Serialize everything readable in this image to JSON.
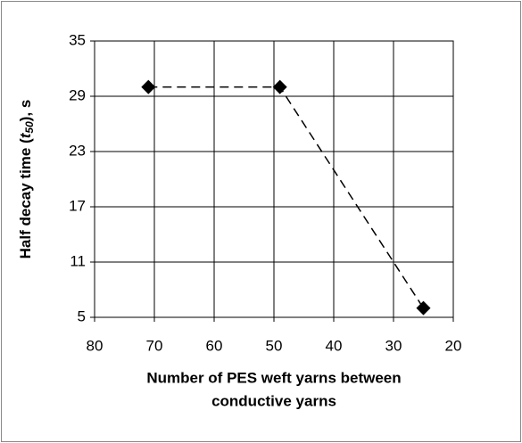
{
  "chart_data": {
    "type": "line",
    "ylabel": [
      "Half decay time (",
      "t",
      "50",
      "), s"
    ],
    "xlabel": [
      "Number of PES weft yarns between",
      "conductive yarns"
    ],
    "x": [
      71,
      49,
      25
    ],
    "series": [
      {
        "name": null,
        "color": "#000000",
        "values": [
          30,
          30,
          6
        ]
      }
    ],
    "xlim": [
      80,
      20
    ],
    "xticks": [
      80,
      70,
      60,
      50,
      40,
      30,
      20
    ],
    "ylim": [
      5,
      35
    ],
    "yticks": [
      5,
      11,
      17,
      23,
      29,
      35
    ],
    "grid": true,
    "line_style": "dashed",
    "marker": "diamond"
  }
}
